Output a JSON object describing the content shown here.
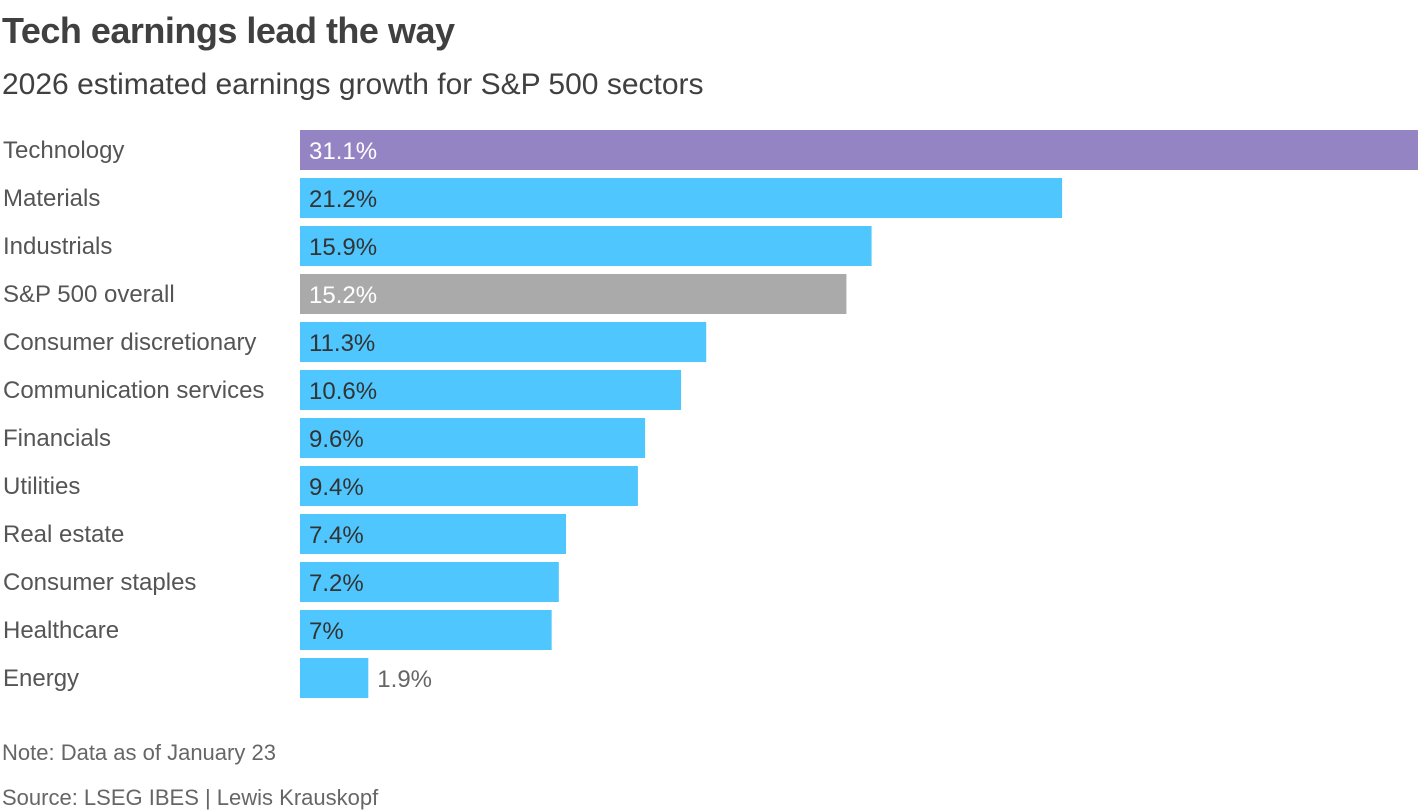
{
  "title": "Tech earnings lead the way",
  "subtitle": "2026 estimated earnings growth for S&P 500 sectors",
  "note": "Note: Data as of January 23",
  "source": "Source: LSEG IBES | Lewis Krauskopf",
  "chart_data": {
    "type": "bar",
    "orientation": "horizontal",
    "title": "Tech earnings lead the way",
    "subtitle": "2026 estimated earnings growth for S&P 500 sectors",
    "categories": [
      "Technology",
      "Materials",
      "Industrials",
      "S&P 500 overall",
      "Consumer discretionary",
      "Communication services",
      "Financials",
      "Utilities",
      "Real estate",
      "Consumer staples",
      "Healthcare",
      "Energy"
    ],
    "values": [
      31.1,
      21.2,
      15.9,
      15.2,
      11.3,
      10.6,
      9.6,
      9.4,
      7.4,
      7.2,
      7,
      1.9
    ],
    "labels": [
      "31.1%",
      "21.2%",
      "15.9%",
      "15.2%",
      "11.3%",
      "10.6%",
      "9.6%",
      "9.4%",
      "7.4%",
      "7.2%",
      "7%",
      "1.9%"
    ],
    "unit": "%",
    "xlim": [
      0,
      31.1
    ],
    "grid": false,
    "colors": {
      "highlight": "#9484c4",
      "default": "#4fc6fd",
      "overall": "#aaaaaa"
    },
    "bar_color_keys": [
      "highlight",
      "default",
      "default",
      "overall",
      "default",
      "default",
      "default",
      "default",
      "default",
      "default",
      "default",
      "default"
    ]
  }
}
